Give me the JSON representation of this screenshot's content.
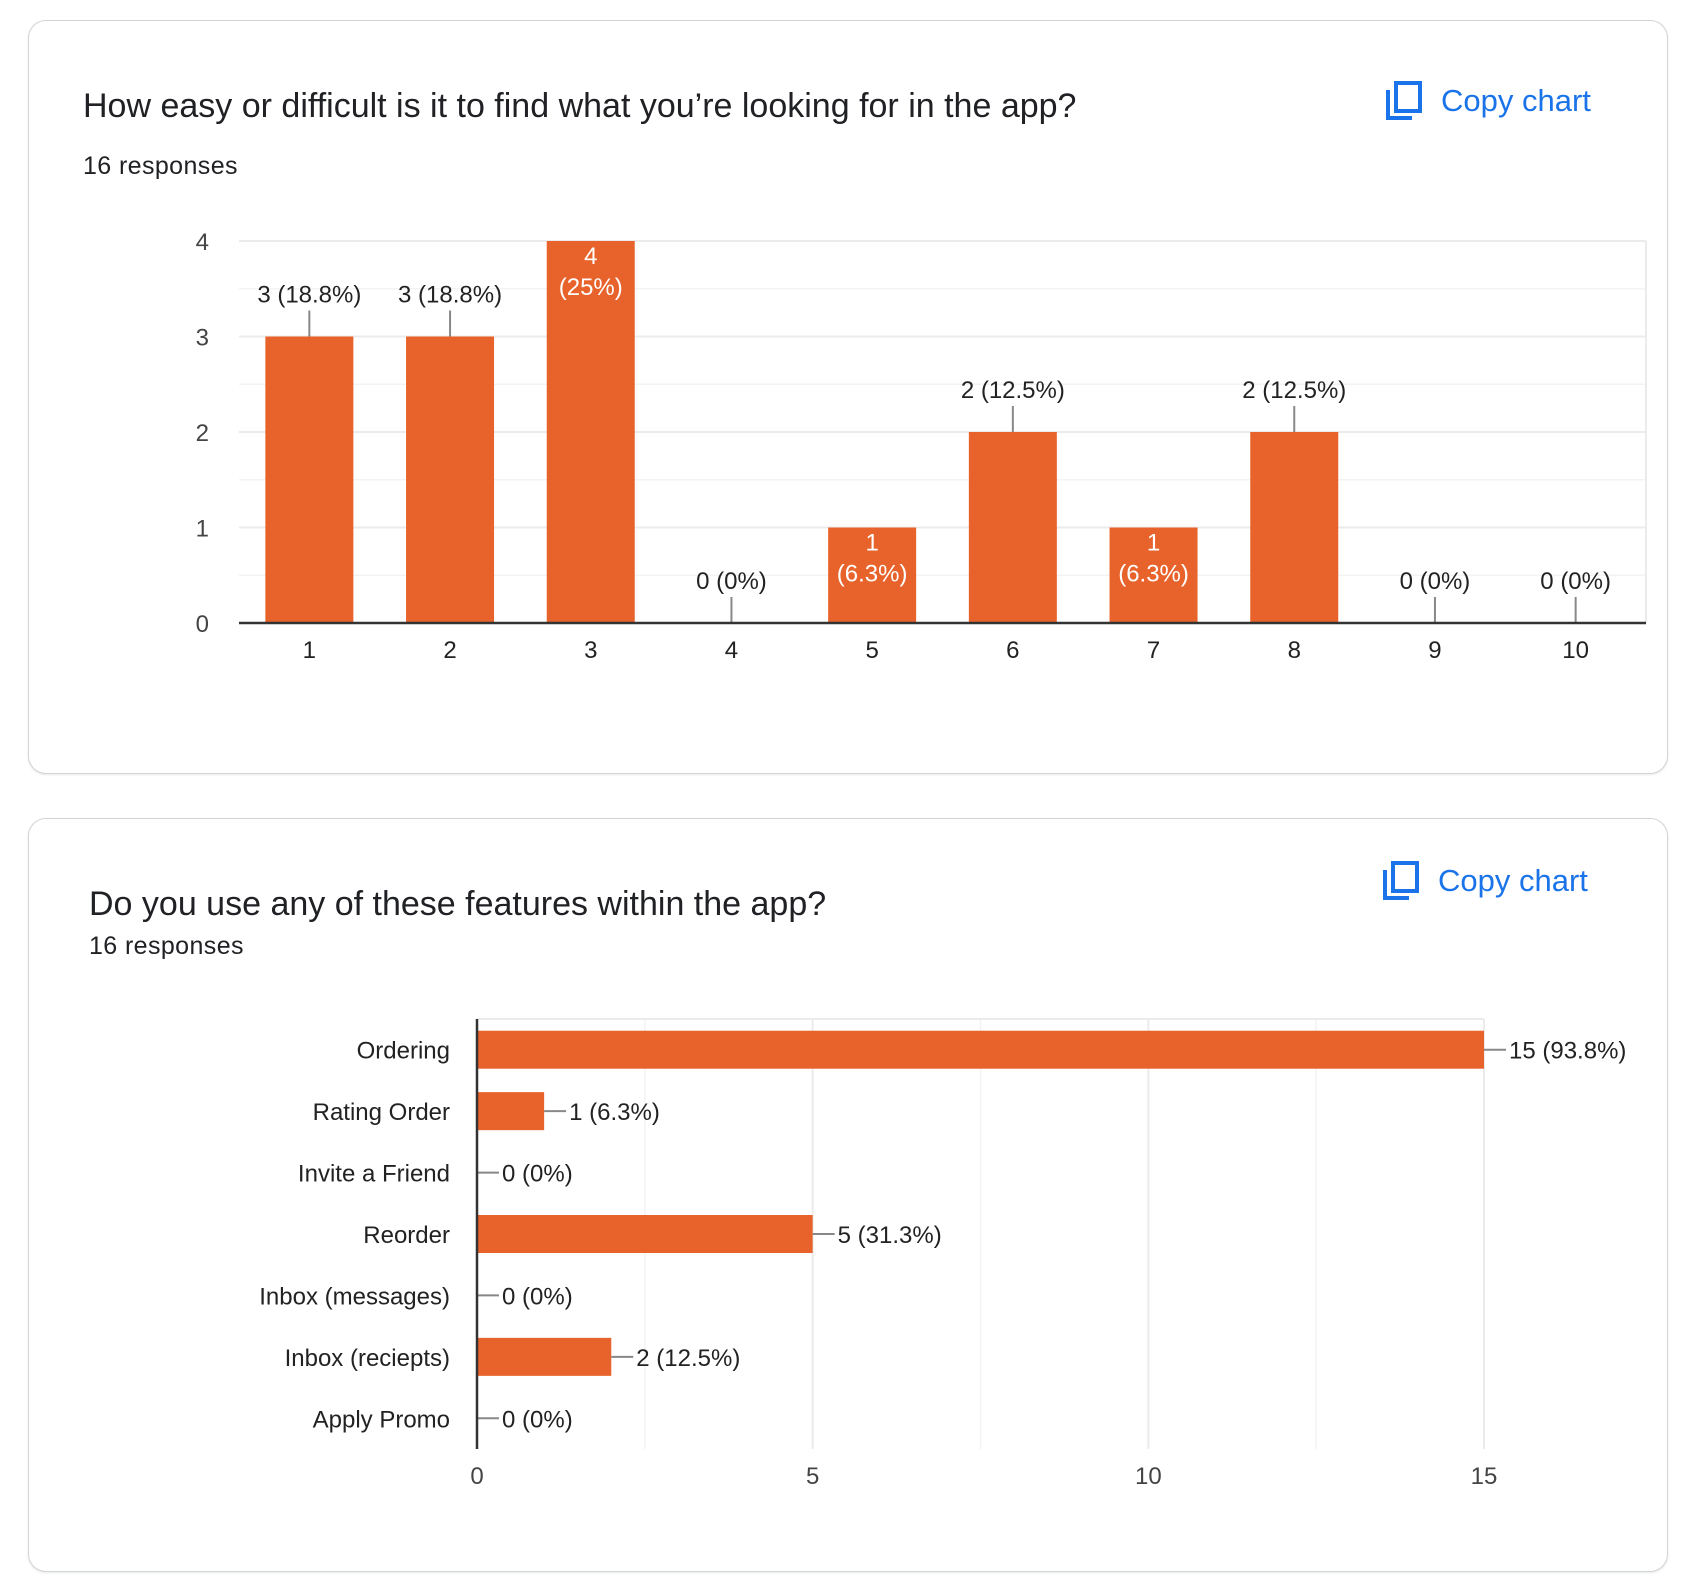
{
  "colors": {
    "bar": "#e8632b",
    "accent": "#1a73e8",
    "axis": "#333333",
    "grid": "#ebebeb",
    "text": "#202124"
  },
  "copy_icon": "copy-content-icon",
  "cards": [
    {
      "title": "How easy or difficult is it to find what you’re looking for in the app?",
      "responses": "16 responses",
      "copy_label": "Copy chart"
    },
    {
      "title": "Do you use any of these features within the app?",
      "responses": "16 responses",
      "copy_label": "Copy chart"
    }
  ],
  "chart_data": [
    {
      "type": "bar",
      "orientation": "vertical",
      "title": "",
      "xlabel": "",
      "ylabel": "",
      "categories": [
        "1",
        "2",
        "3",
        "4",
        "5",
        "6",
        "7",
        "8",
        "9",
        "10"
      ],
      "values": [
        3,
        3,
        4,
        0,
        1,
        2,
        1,
        2,
        0,
        0
      ],
      "data_labels": [
        "3 (18.8%)",
        "3 (18.8%)",
        "4 (25%)",
        "0 (0%)",
        "1 (6.3%)",
        "2 (12.5%)",
        "1 (6.3%)",
        "2 (12.5%)",
        "0 (0%)",
        "0 (0%)"
      ],
      "ylim": [
        0,
        4
      ],
      "y_ticks": [
        "0",
        "1",
        "2",
        "3",
        "4"
      ],
      "grid": true
    },
    {
      "type": "bar",
      "orientation": "horizontal",
      "title": "",
      "xlabel": "",
      "ylabel": "",
      "categories": [
        "Ordering",
        "Rating Order",
        "Invite a Friend",
        "Reorder",
        "Inbox (messages)",
        "Inbox (reciepts)",
        "Apply Promo"
      ],
      "values": [
        15,
        1,
        0,
        5,
        0,
        2,
        0
      ],
      "data_labels": [
        "15 (93.8%)",
        "1 (6.3%)",
        "0 (0%)",
        "5 (31.3%)",
        "0 (0%)",
        "2 (12.5%)",
        "0 (0%)"
      ],
      "xlim": [
        0,
        15
      ],
      "x_ticks": [
        "0",
        "5",
        "10",
        "15"
      ],
      "grid": true
    }
  ]
}
